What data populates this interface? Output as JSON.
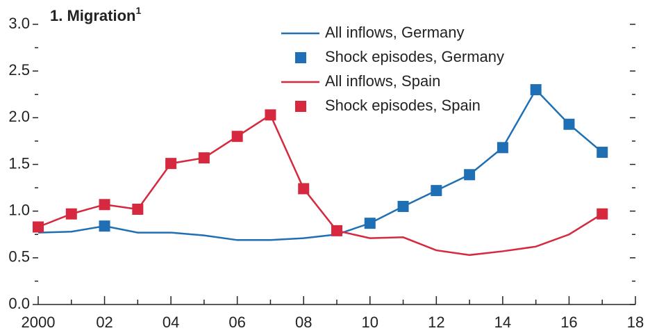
{
  "chart_data": {
    "type": "line",
    "title": "1. Migration",
    "title_note": "1",
    "x": [
      2000,
      2001,
      2002,
      2003,
      2004,
      2005,
      2006,
      2007,
      2008,
      2009,
      2010,
      2011,
      2012,
      2013,
      2014,
      2015,
      2016,
      2017
    ],
    "series": [
      {
        "name": "All inflows, Germany",
        "color": "#1f6fb5",
        "style": "line",
        "values": [
          0.77,
          0.78,
          0.84,
          0.77,
          0.77,
          0.74,
          0.69,
          0.69,
          0.71,
          0.75,
          0.87,
          1.05,
          1.22,
          1.39,
          1.68,
          2.3,
          1.93,
          1.63
        ]
      },
      {
        "name": "Shock episodes, Germany",
        "color": "#1f6fb5",
        "style": "marker",
        "values": [
          null,
          null,
          0.84,
          null,
          null,
          null,
          null,
          null,
          null,
          null,
          0.87,
          1.05,
          1.22,
          1.39,
          1.68,
          2.3,
          1.93,
          1.63
        ]
      },
      {
        "name": "All inflows, Spain",
        "color": "#d6283f",
        "style": "line",
        "values": [
          0.83,
          0.97,
          1.07,
          1.02,
          1.51,
          1.57,
          1.8,
          2.03,
          1.24,
          0.79,
          0.71,
          0.72,
          0.58,
          0.53,
          0.57,
          0.62,
          0.75,
          0.97
        ]
      },
      {
        "name": "Shock episodes, Spain",
        "color": "#d6283f",
        "style": "marker",
        "values": [
          0.83,
          0.97,
          1.07,
          1.02,
          1.51,
          1.57,
          1.8,
          2.03,
          1.24,
          0.79,
          null,
          null,
          null,
          null,
          null,
          null,
          null,
          0.97
        ]
      }
    ],
    "xlim": [
      2000,
      2018
    ],
    "xticks": [
      2000,
      {
        "value": 2002,
        "label": "02"
      },
      {
        "value": 2004,
        "label": "04"
      },
      {
        "value": 2006,
        "label": "06"
      },
      {
        "value": 2008,
        "label": "08"
      },
      {
        "value": 2010,
        "label": "10"
      },
      {
        "value": 2012,
        "label": "12"
      },
      {
        "value": 2014,
        "label": "14"
      },
      {
        "value": 2016,
        "label": "16"
      },
      {
        "value": 2018,
        "label": "18"
      }
    ],
    "xminorticks": [
      2001,
      2003,
      2005,
      2007,
      2009,
      2011,
      2013,
      2015,
      2017
    ],
    "ylim": [
      0,
      3
    ],
    "yticks": [
      {
        "value": 0,
        "label": "0.0"
      },
      0.5,
      {
        "value": 1,
        "label": "1.0"
      },
      1.5,
      {
        "value": 2,
        "label": "2.0"
      },
      2.5,
      {
        "value": 3,
        "label": "3.0"
      }
    ],
    "yminorticks": [
      0.25,
      0.75,
      1.25,
      1.75,
      2.25,
      2.75
    ]
  }
}
